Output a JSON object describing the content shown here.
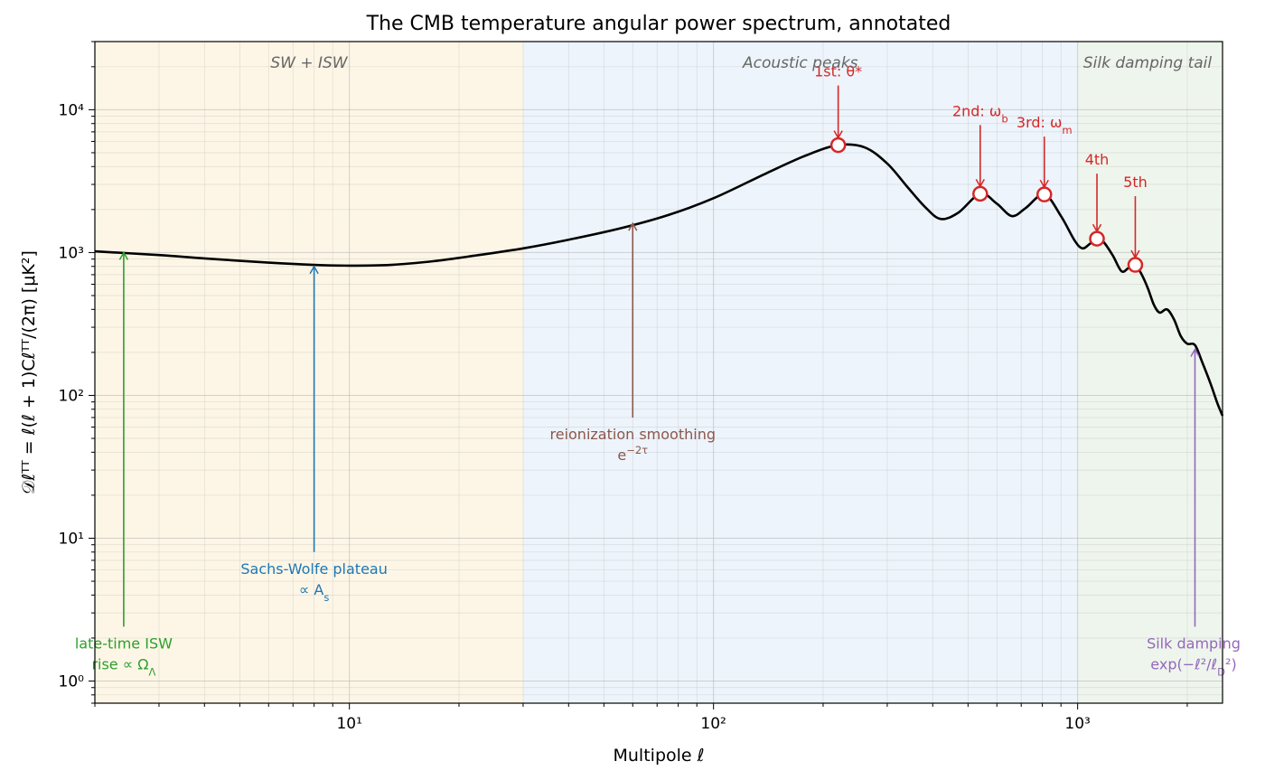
{
  "chart_data": {
    "type": "line",
    "title": "The CMB temperature angular power spectrum, annotated",
    "xlabel": "Multipole ℓ",
    "ylabel": "𝒟ℓᵀᵀ = ℓ(ℓ + 1)Cℓᵀᵀ/(2π)   [μK²]",
    "x_scale": "log",
    "y_scale": "log",
    "xlim": [
      2,
      2500
    ],
    "ylim": [
      0.7,
      30000
    ],
    "grid": true,
    "x_ticks": [
      {
        "value": 10,
        "label": "10¹"
      },
      {
        "value": 100,
        "label": "10²"
      },
      {
        "value": 1000,
        "label": "10³"
      }
    ],
    "y_ticks": [
      {
        "value": 1,
        "label": "10⁰"
      },
      {
        "value": 10,
        "label": "10¹"
      },
      {
        "value": 100,
        "label": "10²"
      },
      {
        "value": 1000,
        "label": "10³"
      },
      {
        "value": 10000,
        "label": "10⁴"
      }
    ],
    "regions": [
      {
        "label": "SW + ISW",
        "x_range": [
          2,
          30
        ],
        "color": "#fdf6e6"
      },
      {
        "label": "Acoustic peaks",
        "x_range": [
          30,
          1000
        ],
        "color": "#edf4fb"
      },
      {
        "label": "Silk damping tail",
        "x_range": [
          1000,
          2500
        ],
        "color": "#eef5ec"
      }
    ],
    "series": [
      {
        "color": "#000000",
        "x": [
          2,
          3,
          4,
          6,
          8,
          10,
          13,
          17,
          22,
          30,
          40,
          55,
          75,
          100,
          140,
          180,
          220,
          260,
          300,
          340,
          380,
          420,
          470,
          540,
          600,
          660,
          720,
          810,
          900,
          980,
          1030,
          1080,
          1130,
          1180,
          1250,
          1320,
          1380,
          1440,
          1500,
          1560,
          1620,
          1680,
          1760,
          1840,
          1920,
          2000,
          2100,
          2200,
          2320,
          2420,
          2500
        ],
        "y": [
          1020,
          960,
          910,
          850,
          820,
          810,
          820,
          870,
          950,
          1070,
          1230,
          1470,
          1830,
          2400,
          3600,
          4800,
          5650,
          5450,
          4200,
          2900,
          2100,
          1720,
          1900,
          2580,
          2200,
          1800,
          2050,
          2550,
          1800,
          1220,
          1070,
          1150,
          1250,
          1180,
          950,
          740,
          780,
          820,
          700,
          560,
          430,
          380,
          400,
          340,
          260,
          230,
          225,
          170,
          120,
          88,
          72
        ]
      }
    ],
    "peaks": [
      {
        "label": "1st: θ*",
        "x": 220,
        "y": 5650
      },
      {
        "label": "2nd: ω_b",
        "x": 540,
        "y": 2580
      },
      {
        "label": "3rd: ω_m",
        "x": 810,
        "y": 2550
      },
      {
        "label": "4th",
        "x": 1130,
        "y": 1250
      },
      {
        "label": "5th",
        "x": 1440,
        "y": 820
      }
    ],
    "annotations": [
      {
        "lines": [
          "late-time ISW",
          "rise  ∝ Ω_Λ"
        ],
        "color": "#2ca02c",
        "x": 2.4,
        "y_from": 2.4,
        "y_to": 1000
      },
      {
        "lines": [
          "Sachs-Wolfe plateau",
          "∝ A_s"
        ],
        "color": "#1f77b4",
        "x": 8,
        "y_from": 8,
        "y_to": 800
      },
      {
        "lines": [
          "reionization smoothing",
          "e^{−2τ}"
        ],
        "color": "#8c564b",
        "x": 60,
        "y_from": 70,
        "y_to": 1600
      },
      {
        "lines": [
          "Silk damping",
          "exp(−ℓ²/ℓ_D²)"
        ],
        "color": "#9467bd",
        "x": 2100,
        "y_from": 2.4,
        "y_to": 210
      }
    ]
  }
}
